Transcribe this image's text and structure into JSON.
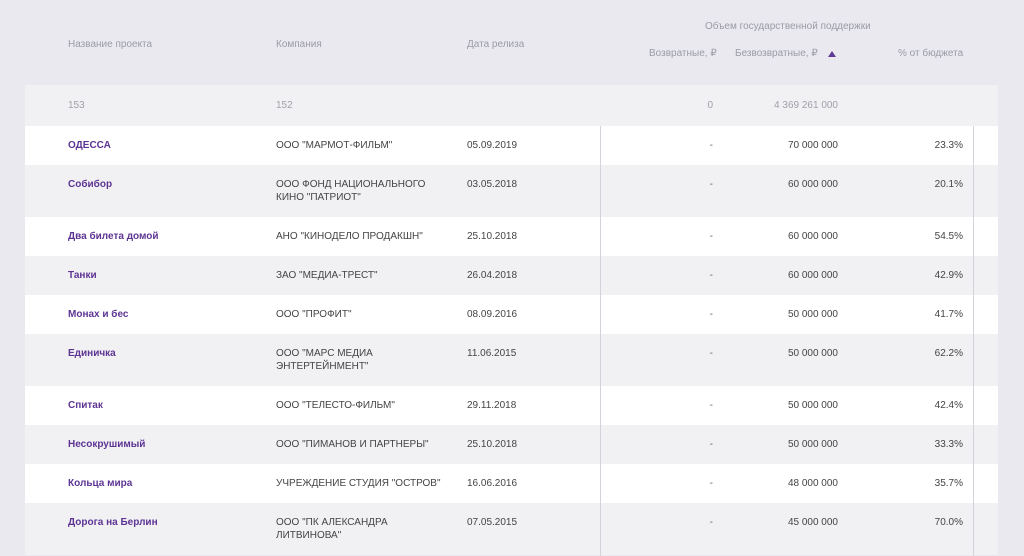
{
  "header": {
    "name": "Название проекта",
    "company": "Компания",
    "release_date": "Дата релиза",
    "support_group": "Объем государственной поддержки",
    "returnable": "Возвратные, ₽",
    "non_returnable": "Безвозвратные, ₽",
    "budget_share": "% от бюджета",
    "sort": {
      "column": "non_returnable",
      "direction": "descending",
      "icon": "sort-arrow-up-icon",
      "color": "#5e3a94"
    }
  },
  "summary": {
    "name": "153",
    "company": "152",
    "release_date": "",
    "returnable": "0",
    "non_returnable": "4 369 261 000",
    "budget_share": ""
  },
  "rows": [
    {
      "name": "ОДЕССА",
      "company": [
        "ООО \"МАРМОТ-ФИЛЬМ\""
      ],
      "release_date": "05.09.2019",
      "returnable": "-",
      "non_returnable": "70 000 000",
      "budget_share": "23.3%"
    },
    {
      "name": "Собибор",
      "company": [
        "ООО ФОНД НАЦИОНАЛЬНОГО",
        "КИНО \"ПАТРИОТ\""
      ],
      "release_date": "03.05.2018",
      "returnable": "-",
      "non_returnable": "60 000 000",
      "budget_share": "20.1%"
    },
    {
      "name": "Два билета домой",
      "company": [
        "АНО \"КИНОДЕЛО ПРОДАКШН\""
      ],
      "release_date": "25.10.2018",
      "returnable": "-",
      "non_returnable": "60 000 000",
      "budget_share": "54.5%"
    },
    {
      "name": "Танки",
      "company": [
        "ЗАО \"МЕДИА-ТРЕСТ\""
      ],
      "release_date": "26.04.2018",
      "returnable": "-",
      "non_returnable": "60 000 000",
      "budget_share": "42.9%"
    },
    {
      "name": "Монах и бес",
      "company": [
        "ООО \"ПРОФИТ\""
      ],
      "release_date": "08.09.2016",
      "returnable": "-",
      "non_returnable": "50 000 000",
      "budget_share": "41.7%"
    },
    {
      "name": "Единичка",
      "company": [
        "ООО \"МАРС МЕДИА",
        "ЭНТЕРТЕЙНМЕНТ\""
      ],
      "release_date": "11.06.2015",
      "returnable": "-",
      "non_returnable": "50 000 000",
      "budget_share": "62.2%"
    },
    {
      "name": "Спитак",
      "company": [
        "ООО \"ТЕЛЕСТО-ФИЛЬМ\""
      ],
      "release_date": "29.11.2018",
      "returnable": "-",
      "non_returnable": "50 000 000",
      "budget_share": "42.4%"
    },
    {
      "name": "Несокрушимый",
      "company": [
        "ООО \"ПИМАНОВ И ПАРТНЕРЫ\""
      ],
      "release_date": "25.10.2018",
      "returnable": "-",
      "non_returnable": "50 000 000",
      "budget_share": "33.3%"
    },
    {
      "name": "Кольца мира",
      "company": [
        "УЧРЕЖДЕНИЕ СТУДИЯ \"ОСТРОВ\""
      ],
      "release_date": "16.06.2016",
      "returnable": "-",
      "non_returnable": "48 000 000",
      "budget_share": "35.7%"
    },
    {
      "name": "Дорога на Берлин",
      "company": [
        "ООО \"ПК АЛЕКСАНДРА",
        "ЛИТВИНОВА\""
      ],
      "release_date": "07.05.2015",
      "returnable": "-",
      "non_returnable": "45 000 000",
      "budget_share": "70.0%"
    }
  ]
}
